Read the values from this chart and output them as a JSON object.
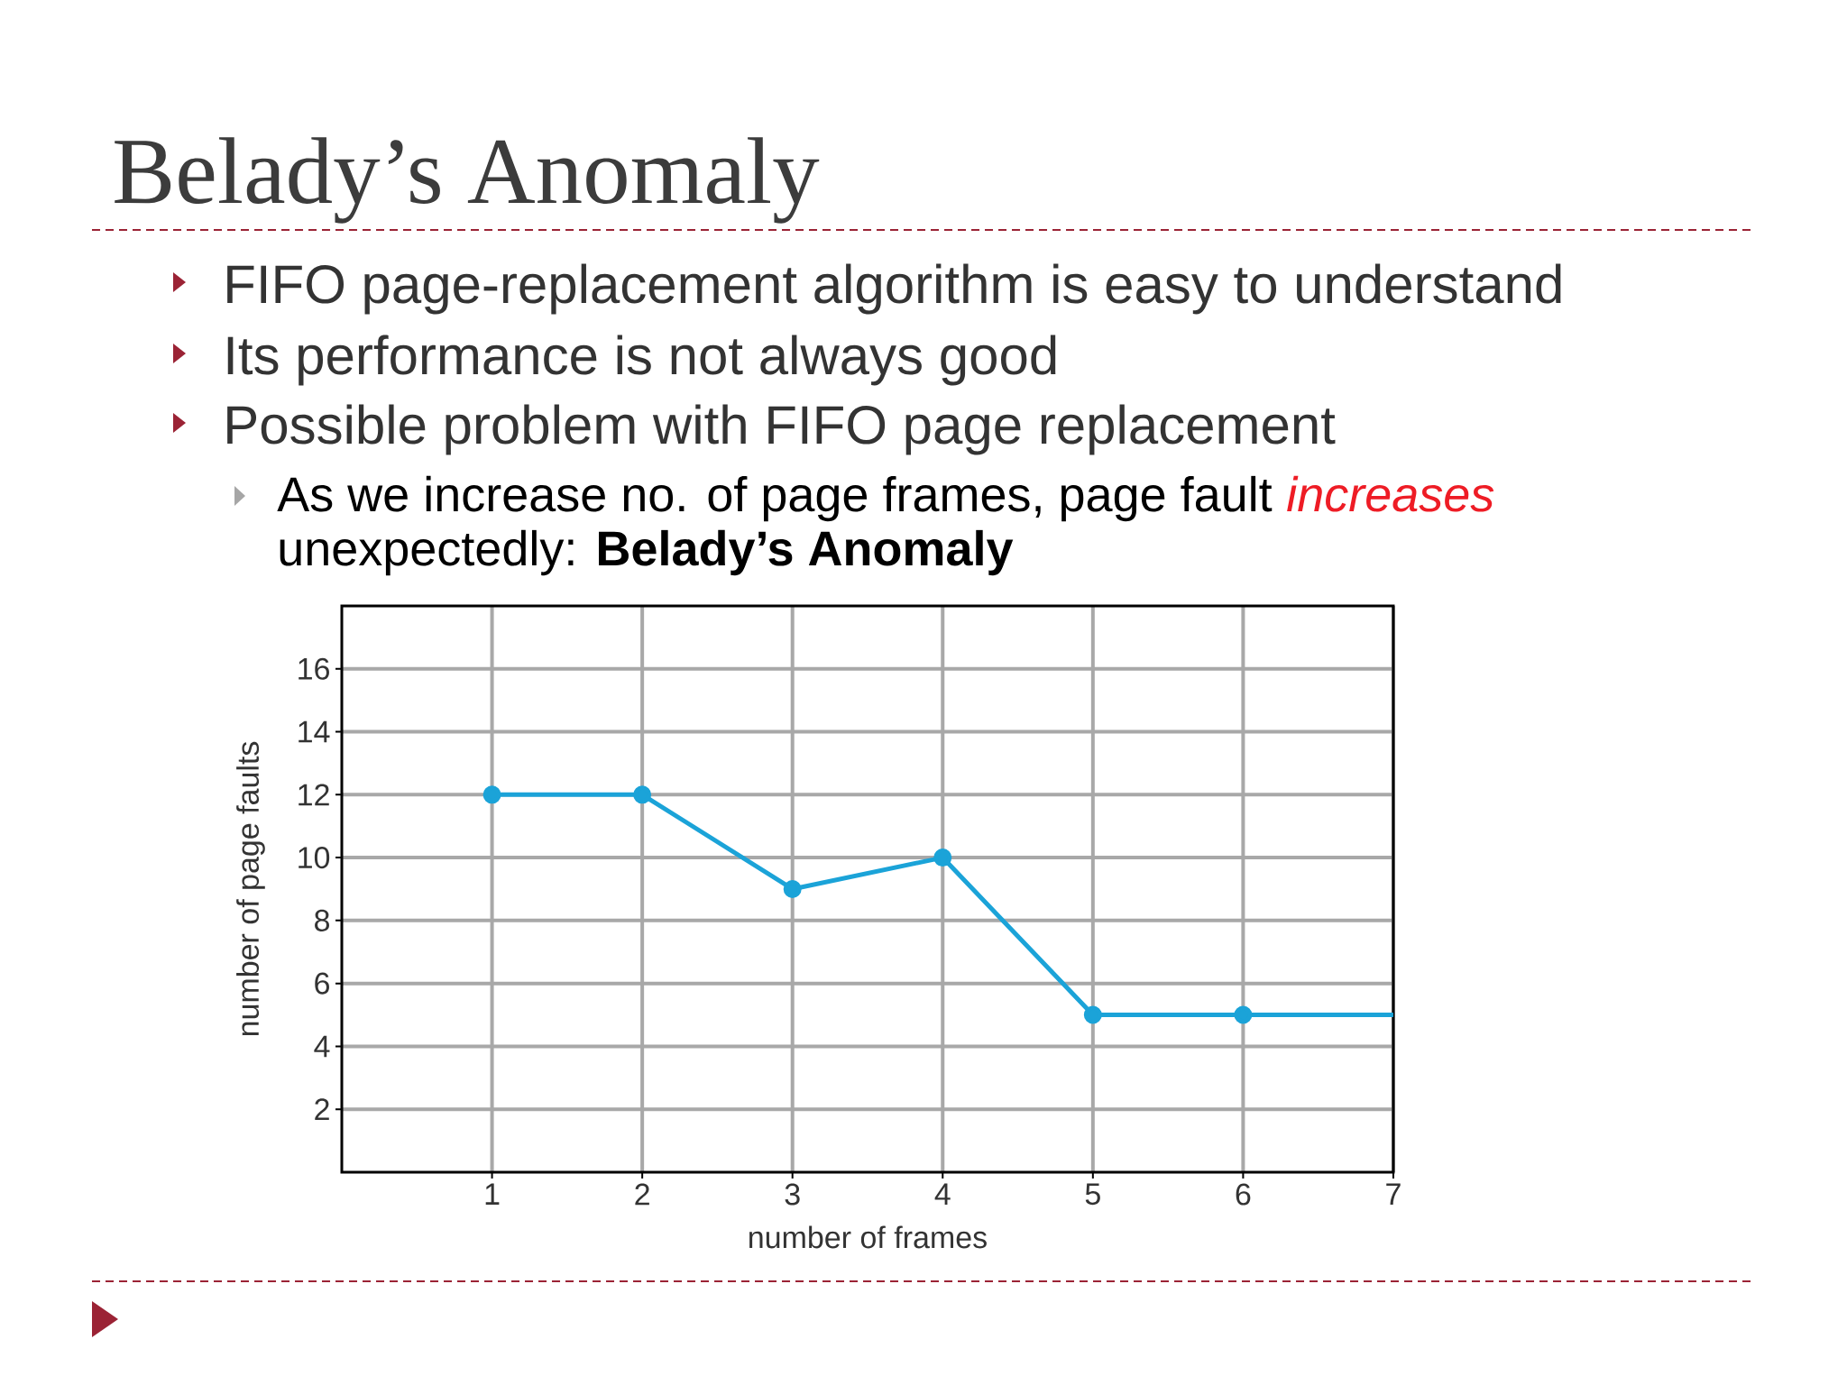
{
  "chart_data": {
    "type": "line",
    "title": "Belady’s Anomaly",
    "annotations": [
      "FIFO page-replacement algorithm is easy to understand",
      "Its performance is not always good",
      "Possible problem with FIFO page replacement",
      "As we increase no. of page frames, page fault",
      "increases",
      "unexpectedly:  **Belady’s Anomaly**"
    ],
    "xlabel": "number of frames",
    "ylabel": "number of page faults",
    "series": [
      {
        "color": "#1ba3d8",
        "x": [
          1,
          2,
          3,
          4,
          5,
          6
        ],
        "values": [
          12,
          12,
          9,
          10,
          5,
          5
        ],
        "marker": "circle"
      },
      {
        "color": "#1ba3d8",
        "x": [
          6,
          7
        ],
        "values": [
          5,
          5
        ],
        "marker": "none"
      }
    ],
    "xlim": [
      0,
      7
    ],
    "ylim": [
      0,
      18
    ],
    "xticks": [
      1,
      2,
      3,
      4,
      5,
      6,
      7
    ],
    "yticks": [
      2,
      4,
      6,
      8,
      10,
      12,
      14,
      16
    ],
    "grid": true,
    "line_style": "solid"
  }
}
